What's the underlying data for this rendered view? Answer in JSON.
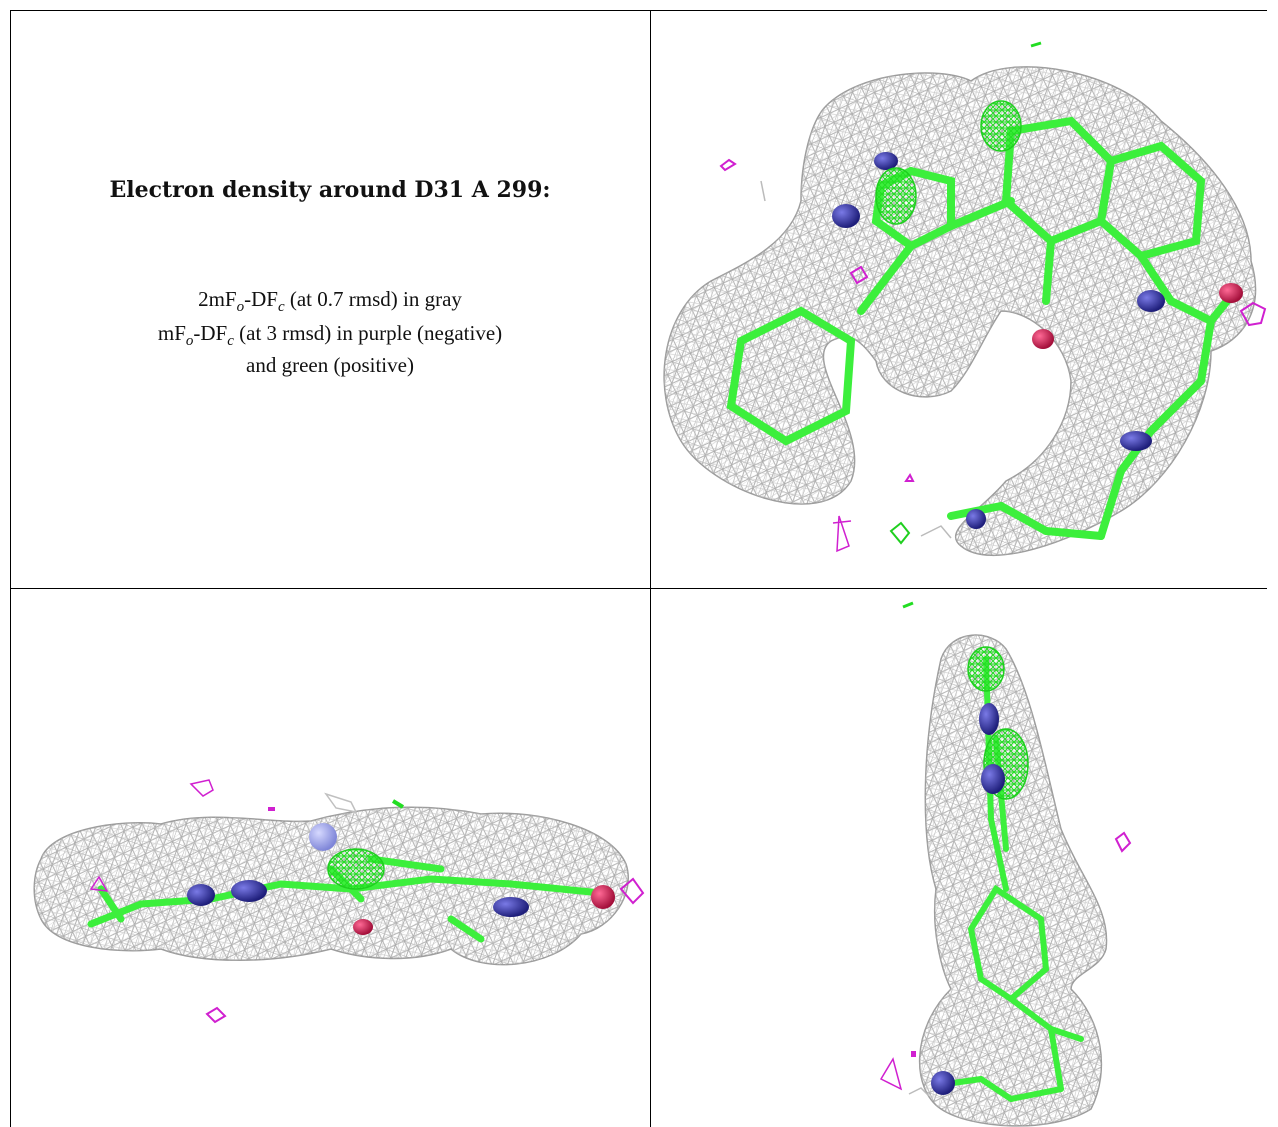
{
  "caption": {
    "title": "Electron density around D31 A 299:",
    "line1": {
      "prefix": "2mF",
      "sub1": "o",
      "mid": "-DF",
      "sub2": "c",
      "suffix": " (at 0.7 rmsd) in gray"
    },
    "line2": {
      "prefix": "mF",
      "sub1": "o",
      "mid": "-DF",
      "sub2": "c",
      "suffix": " (at 3 rmsd) in purple (negative)"
    },
    "line3": "and green (positive)"
  },
  "colors": {
    "mesh_gray": "#b4b4b4",
    "positive_green": "#00e000",
    "negative_purple": "#d020d0",
    "carbon": "#33ee33",
    "nitrogen": "#3535b5",
    "oxygen": "#e0205a",
    "ion": "#9aa0e8"
  },
  "panels": [
    {
      "view": "top-right"
    },
    {
      "view": "bottom-left"
    },
    {
      "view": "bottom-right"
    }
  ]
}
